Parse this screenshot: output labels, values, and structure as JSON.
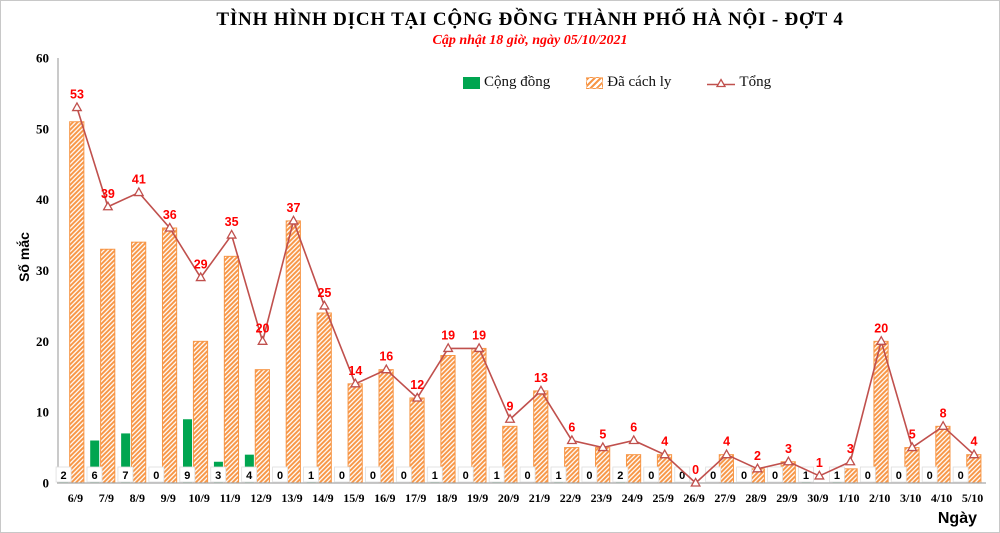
{
  "header": {
    "title": "TÌNH HÌNH DỊCH TẠI CỘNG ĐỒNG THÀNH PHỐ HÀ NỘI - ĐỢT 4",
    "subtitle": "Cập nhật 18 giờ, ngày 05/10/2021"
  },
  "legend": {
    "items": [
      {
        "label": "Cộng đồng",
        "color": "#00A550",
        "type": "bar"
      },
      {
        "label": "Đã cách ly",
        "color": "#F79646",
        "type": "hatched-bar"
      },
      {
        "label": "Tổng",
        "color": "#C0504D",
        "type": "line-triangle-marker"
      }
    ]
  },
  "axes": {
    "ylabel": "Số mắc",
    "xlabel": "Ngày",
    "yticks": [
      0,
      10,
      20,
      30,
      40,
      50,
      60
    ]
  },
  "chart_data": {
    "type": "bar-line-combo",
    "title": "TÌNH HÌNH DỊCH TẠI CỘNG ĐỒNG THÀNH PHỐ HÀ NỘI - ĐỢT 4",
    "subtitle": "Cập nhật 18 giờ, ngày 05/10/2021",
    "xlabel": "Ngày",
    "ylabel": "Số mắc",
    "ylim": [
      0,
      60
    ],
    "ytick_step": 10,
    "grid": false,
    "legend_position": "top-inside",
    "categories": [
      "6/9",
      "7/9",
      "8/9",
      "9/9",
      "10/9",
      "11/9",
      "12/9",
      "13/9",
      "14/9",
      "15/9",
      "16/9",
      "17/9",
      "18/9",
      "19/9",
      "20/9",
      "21/9",
      "22/9",
      "23/9",
      "24/9",
      "25/9",
      "26/9",
      "27/9",
      "28/9",
      "29/9",
      "30/9",
      "1/10",
      "2/10",
      "3/10",
      "4/10",
      "5/10"
    ],
    "series": [
      {
        "name": "Cộng đồng",
        "type": "bar",
        "color": "#00A550",
        "label_color": "#000000",
        "values": [
          2,
          6,
          7,
          0,
          9,
          3,
          4,
          0,
          1,
          0,
          0,
          0,
          1,
          0,
          1,
          0,
          1,
          0,
          2,
          0,
          0,
          0,
          0,
          0,
          1,
          1,
          0,
          0,
          0,
          0
        ]
      },
      {
        "name": "Đã cách ly",
        "type": "bar",
        "style": "diagonal-hatch",
        "color": "#F79646",
        "values": [
          51,
          33,
          34,
          36,
          20,
          32,
          16,
          37,
          24,
          14,
          16,
          12,
          18,
          19,
          8,
          13,
          5,
          5,
          4,
          4,
          0,
          4,
          2,
          3,
          0,
          2,
          20,
          5,
          8,
          4
        ]
      },
      {
        "name": "Tổng",
        "type": "line",
        "marker": "open-triangle",
        "color": "#C0504D",
        "label_color": "#FF0000",
        "values": [
          53,
          39,
          41,
          36,
          29,
          35,
          20,
          37,
          25,
          14,
          16,
          12,
          19,
          19,
          9,
          13,
          6,
          5,
          6,
          4,
          0,
          4,
          2,
          3,
          1,
          3,
          20,
          5,
          8,
          4
        ]
      }
    ]
  }
}
